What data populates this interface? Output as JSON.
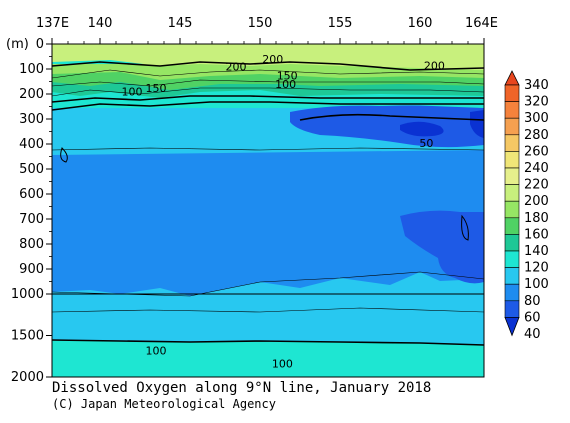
{
  "chart_data": {
    "type": "heatmap",
    "title": "Dissolved Oxygen along 9°N line, January 2018",
    "credit": "(C) Japan Meteorological Agency",
    "x_ticks": [
      "137E",
      "140",
      "145",
      "150",
      "155",
      "160",
      "164E"
    ],
    "x_tick_values": [
      137,
      140,
      145,
      150,
      155,
      160,
      164
    ],
    "x_range": [
      137,
      164
    ],
    "y_unit": "(m)",
    "y_ticks_upper": [
      "0",
      "100",
      "200",
      "300",
      "400",
      "500",
      "600",
      "700",
      "800",
      "900",
      "1000"
    ],
    "y_tick_values_upper": [
      0,
      100,
      200,
      300,
      400,
      500,
      600,
      700,
      800,
      900,
      1000
    ],
    "y_ticks_lower": [
      "1500",
      "2000"
    ],
    "y_tick_values_lower": [
      1500,
      2000
    ],
    "y_break_depth": 1000,
    "colorbar_labels": [
      "340",
      "320",
      "300",
      "280",
      "260",
      "240",
      "220",
      "200",
      "180",
      "160",
      "140",
      "120",
      "100",
      "80",
      "60",
      "40"
    ],
    "colorbar_values": [
      340,
      320,
      300,
      280,
      260,
      240,
      220,
      200,
      180,
      160,
      140,
      120,
      100,
      80,
      60,
      40
    ],
    "colorbar_colors": [
      "#e8461e",
      "#f06428",
      "#f5823c",
      "#f5a050",
      "#f5c864",
      "#f0e678",
      "#e6f08c",
      "#c8f07d",
      "#96e664",
      "#50d264",
      "#1ec896",
      "#1ee6d2",
      "#28c8f0",
      "#1e8cf0",
      "#1e5ae6",
      "#0a32d2"
    ],
    "contour_labels": [
      {
        "text": "200",
        "lon": 150.8,
        "depth": 60
      },
      {
        "text": "200",
        "lon": 148.5,
        "depth": 90
      },
      {
        "text": "200",
        "lon": 160.9,
        "depth": 85
      },
      {
        "text": "150",
        "lon": 151.7,
        "depth": 125
      },
      {
        "text": "100",
        "lon": 151.6,
        "depth": 160
      },
      {
        "text": "150",
        "lon": 143.5,
        "depth": 175
      },
      {
        "text": "100",
        "lon": 142.0,
        "depth": 190
      },
      {
        "text": "50",
        "lon": 160.4,
        "depth": 395
      },
      {
        "text": "100",
        "lon": 143.5,
        "depth": 1680
      },
      {
        "text": "100",
        "lon": 151.4,
        "depth": 1840
      }
    ]
  }
}
